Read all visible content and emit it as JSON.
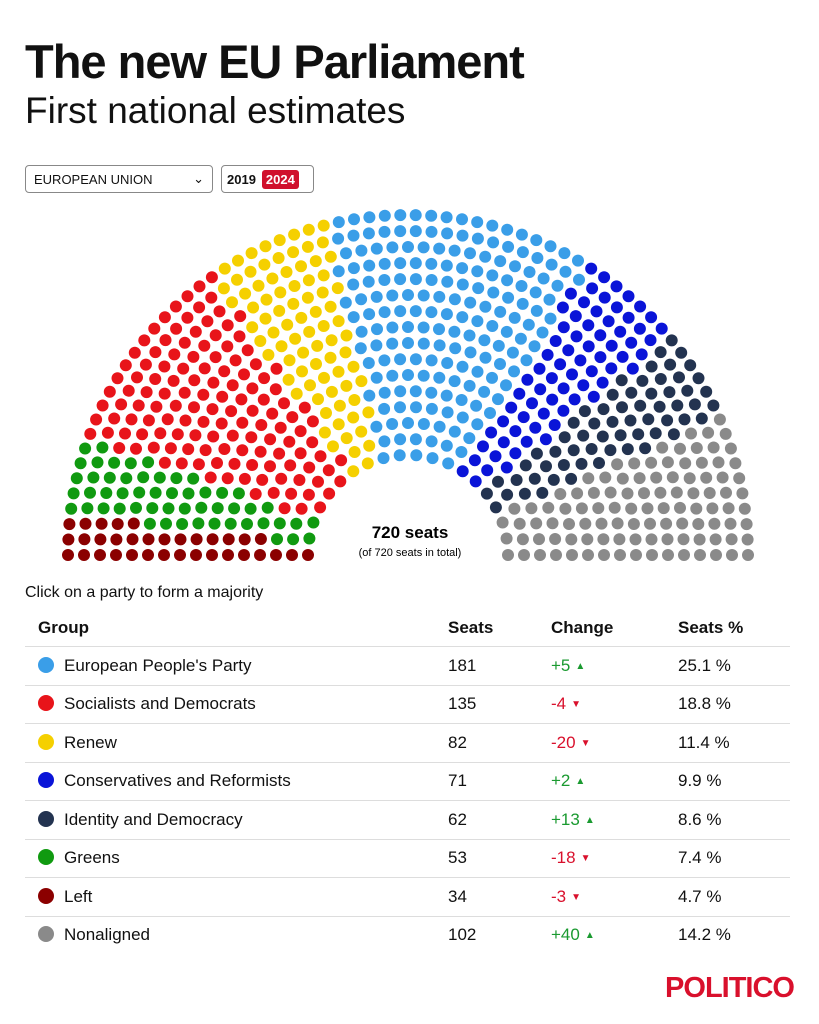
{
  "title": "The new EU Parliament",
  "subtitle": "First national estimates",
  "region_select": {
    "value": "EUROPEAN UNION"
  },
  "years": {
    "y2019": "2019",
    "y2024": "2024",
    "selected": "2024"
  },
  "hint": "Click on a party to form a majority",
  "logo": "POLITICO",
  "chart_data": {
    "type": "parliament",
    "center_label": "720 seats",
    "center_sublabel": "(of 720 seats in total)",
    "order": [
      "Left",
      "Greens",
      "Socialists and Democrats",
      "Renew",
      "European People's Party",
      "Conservatives and Reformists",
      "Identity and Democracy",
      "Nonaligned"
    ]
  },
  "table": {
    "headers": [
      "Group",
      "Seats",
      "Change",
      "Seats %"
    ],
    "rows": [
      {
        "group": "European People's Party",
        "seats": "181",
        "change": "+5",
        "dir": "up",
        "pct": "25.1 %",
        "color": "#3a9ee8"
      },
      {
        "group": "Socialists and Democrats",
        "seats": "135",
        "change": "-4",
        "dir": "down",
        "pct": "18.8 %",
        "color": "#e8141a"
      },
      {
        "group": "Renew",
        "seats": "82",
        "change": "-20",
        "dir": "down",
        "pct": "11.4 %",
        "color": "#f5d000"
      },
      {
        "group": "Conservatives and Reformists",
        "seats": "71",
        "change": "+2",
        "dir": "up",
        "pct": "9.9 %",
        "color": "#0a14d8"
      },
      {
        "group": "Identity and Democracy",
        "seats": "62",
        "change": "+13",
        "dir": "up",
        "pct": "8.6 %",
        "color": "#233350"
      },
      {
        "group": "Greens",
        "seats": "53",
        "change": "-18",
        "dir": "down",
        "pct": "7.4 %",
        "color": "#109a10"
      },
      {
        "group": "Left",
        "seats": "34",
        "change": "-3",
        "dir": "down",
        "pct": "4.7 %",
        "color": "#8b0000"
      },
      {
        "group": "Nonaligned",
        "seats": "102",
        "change": "+40",
        "dir": "up",
        "pct": "14.2 %",
        "color": "#8a8a8a"
      }
    ]
  }
}
